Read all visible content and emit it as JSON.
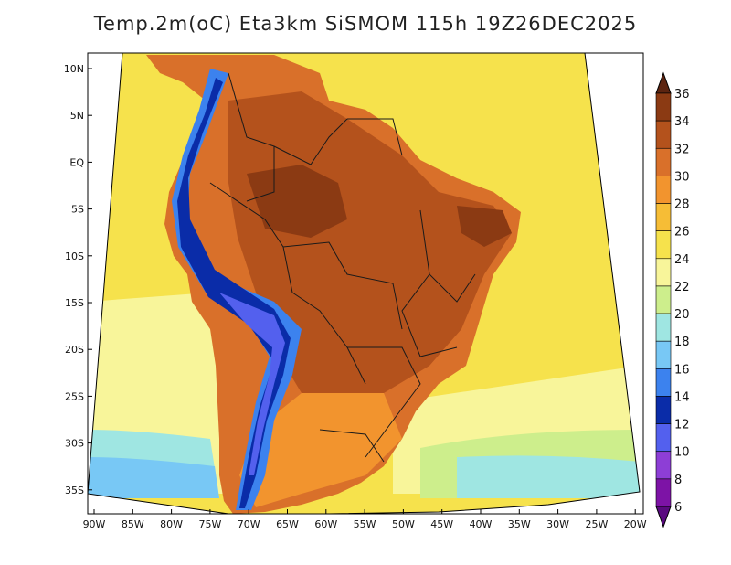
{
  "title": "Temp.2m(oC) Eta3km SiSMOM 115h 19Z26DEC2025",
  "latitude_labels": [
    "10N",
    "5N",
    "EQ",
    "5S",
    "10S",
    "15S",
    "20S",
    "25S",
    "30S",
    "35S"
  ],
  "longitude_labels": [
    "90W",
    "85W",
    "80W",
    "75W",
    "70W",
    "65W",
    "60W",
    "55W",
    "50W",
    "45W",
    "40W",
    "35W",
    "30W",
    "25W",
    "20W"
  ],
  "colorbar": {
    "labels": [
      "36",
      "34",
      "32",
      "30",
      "28",
      "26",
      "24",
      "22",
      "20",
      "18",
      "16",
      "14",
      "12",
      "10",
      "8",
      "6"
    ],
    "colors": [
      "#5c2410",
      "#8b3a13",
      "#b4521c",
      "#d9702a",
      "#f2942e",
      "#f6bd36",
      "#f6e24c",
      "#f8f59a",
      "#cdee8c",
      "#9fe6e2",
      "#78c8f5",
      "#3c82ee",
      "#0a2ca8",
      "#5360ee",
      "#8d3ed6",
      "#7d13a6",
      "#5a0a80"
    ]
  },
  "palette": {
    "ocean_warm": "#f6e24c",
    "ocean_mild": "#f8f59a",
    "ocean_cool": "#cdee8c",
    "ocean_cold": "#9fe6e2",
    "ocean_colder": "#78c8f5",
    "land_hot": "#d9702a",
    "land_very_hot": "#b4521c",
    "land_extreme": "#8b3a13",
    "land_warm": "#f2942e",
    "andes_cool": "#3c82ee",
    "andes_cold": "#0a2ca8",
    "andes_purple": "#5360ee",
    "border": "#1a1a1a"
  }
}
